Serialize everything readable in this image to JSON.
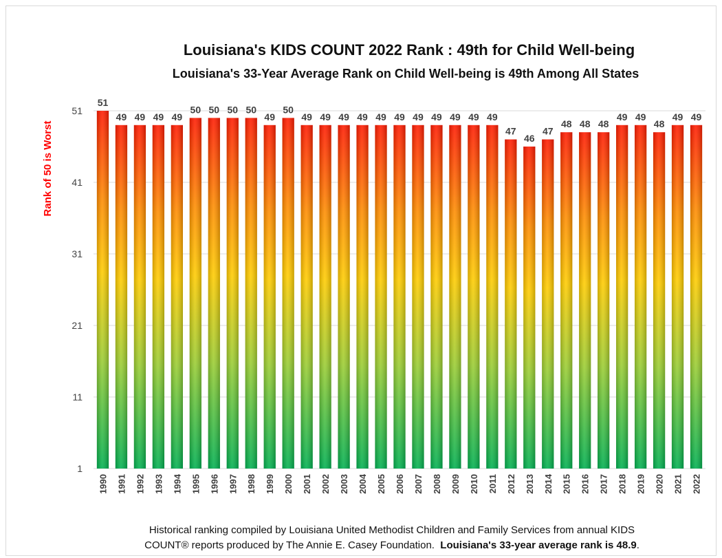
{
  "chart_data": {
    "type": "bar",
    "title": "Louisiana's KIDS COUNT 2022 Rank : 49th for Child Well-being",
    "subtitle": "Louisiana's 33-Year Average Rank on Child Well-being is 49th Among All States",
    "ylabel": "Rank of 50 is Worst",
    "xlabel": "",
    "categories": [
      "1990",
      "1991",
      "1992",
      "1993",
      "1994",
      "1995",
      "1996",
      "1997",
      "1998",
      "1999",
      "2000",
      "2001",
      "2002",
      "2003",
      "2004",
      "2005",
      "2006",
      "2007",
      "2008",
      "2009",
      "2010",
      "2011",
      "2012",
      "2013",
      "2014",
      "2015",
      "2016",
      "2017",
      "2018",
      "2019",
      "2020",
      "2021",
      "2022"
    ],
    "values": [
      51,
      49,
      49,
      49,
      49,
      50,
      50,
      50,
      50,
      49,
      50,
      49,
      49,
      49,
      49,
      49,
      49,
      49,
      49,
      49,
      49,
      49,
      47,
      46,
      47,
      48,
      48,
      48,
      49,
      49,
      48,
      49,
      49
    ],
    "yticks": [
      1,
      11,
      21,
      31,
      41,
      51
    ],
    "ylim": [
      1,
      51
    ],
    "grid": true,
    "legend": "none",
    "colors": {
      "bar_top": "#ff1a00",
      "bar_mid_high": "#ff8c00",
      "bar_mid": "#ffcc00",
      "bar_mid_low": "#9acd32",
      "bar_bottom": "#00b050",
      "ylabel_color": "#ff0000",
      "gridline": "#d9d9d9"
    }
  },
  "footnote": {
    "line1": "Historical ranking compiled by Louisiana United Methodist Children and Family Services from annual KIDS",
    "line2_plain": "COUNT® reports produced by The Annie E. Casey Foundation.",
    "line2_bold": "Louisiana's 33-year average rank is 48.9",
    "line2_end": "."
  }
}
